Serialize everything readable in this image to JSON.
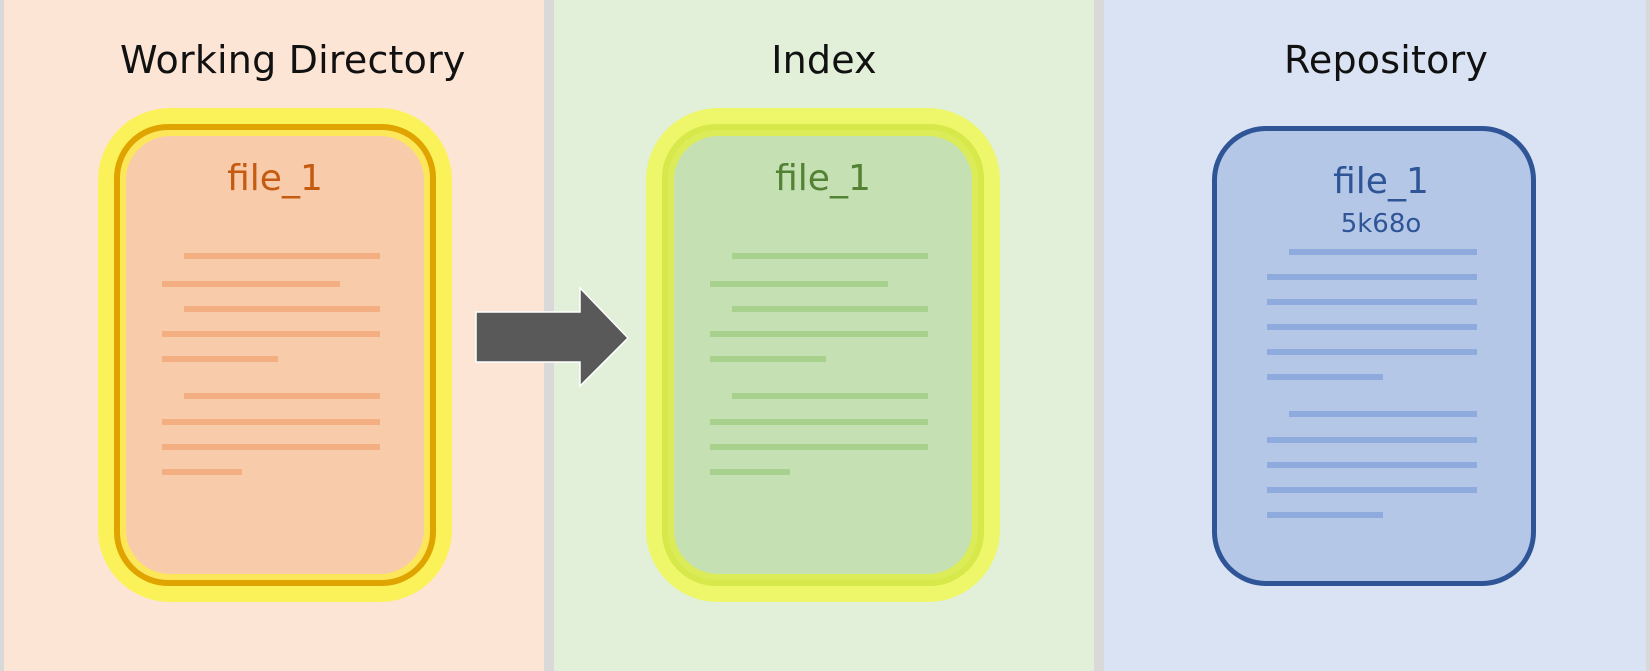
{
  "diagram": {
    "areas": [
      {
        "id": "working-directory",
        "title": "Working Directory",
        "file": {
          "name": "file_1",
          "hash": ""
        },
        "colors": {
          "background": "#fde5d6",
          "glow": "#fbf25a",
          "border": "#e0a400",
          "fill": "#f8ccab",
          "text": "#c55a11",
          "lines": "#f3af82"
        }
      },
      {
        "id": "index",
        "title": "Index",
        "file": {
          "name": "file_1",
          "hash": ""
        },
        "colors": {
          "background": "#e2efd9",
          "glow": "#eef76a",
          "border": "#d6e84a",
          "fill": "#c5e0b3",
          "text": "#548235",
          "lines": "#a9d18e"
        }
      },
      {
        "id": "repository",
        "title": "Repository",
        "file": {
          "name": "file_1",
          "hash": "5k68o"
        },
        "colors": {
          "background": "#dae3f3",
          "glow": "",
          "border": "#2f5597",
          "fill": "#b4c7e7",
          "text": "#2f5597",
          "lines": "#8faadc"
        }
      }
    ],
    "arrow": {
      "from": "working-directory",
      "to": "index",
      "color": "#595959"
    }
  }
}
